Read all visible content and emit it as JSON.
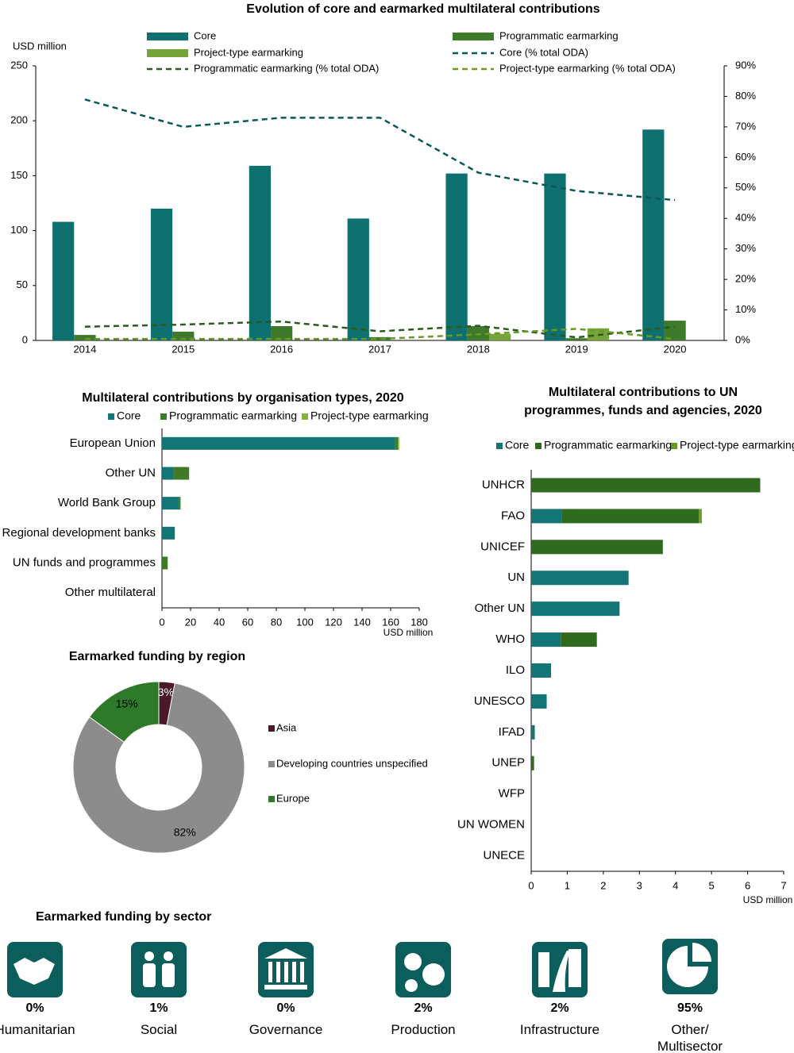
{
  "chart_data": [
    {
      "type": "combo",
      "title": "Evolution of core and earmarked multilateral contributions",
      "ylabel": "USD million",
      "categories": [
        "2014",
        "2015",
        "2016",
        "2017",
        "2018",
        "2019",
        "2020"
      ],
      "series": [
        {
          "name": "Core",
          "type": "bar",
          "color": "#0f7070",
          "values": [
            108,
            120,
            159,
            111,
            152,
            152,
            192
          ]
        },
        {
          "name": "Programmatic earmarking",
          "type": "bar",
          "color": "#3f7a2a",
          "values": [
            5,
            8,
            13,
            3,
            13,
            2,
            18
          ]
        },
        {
          "name": "Project-type earmarking",
          "type": "bar",
          "color": "#77a43a",
          "values": [
            0,
            0,
            0,
            0,
            6,
            11,
            0
          ]
        },
        {
          "name": "Core (% total ODA)",
          "type": "line",
          "axis": "y2",
          "color": "#0b5757",
          "values": [
            79,
            70,
            73,
            73,
            55,
            49,
            46
          ]
        },
        {
          "name": "Programmatic earmarking (% total ODA)",
          "type": "line",
          "axis": "y2",
          "color": "#2b5a1d",
          "values": [
            4.5,
            5.2,
            6.2,
            3,
            4.8,
            1,
            4.5
          ]
        },
        {
          "name": "Project-type earmarking (% total ODA)",
          "type": "line",
          "axis": "y2",
          "color": "#6a9a24",
          "values": [
            0.5,
            0.5,
            0.5,
            0.5,
            2,
            3.8,
            0.5
          ]
        }
      ],
      "ylim": [
        0,
        250
      ],
      "yticks": [
        0,
        50,
        100,
        150,
        200,
        250
      ],
      "y2lim": [
        0,
        90
      ],
      "y2ticks": [
        {
          "value": 0,
          "label": "0%"
        },
        {
          "value": 10,
          "label": "10%"
        },
        {
          "value": 20,
          "label": "20%"
        },
        {
          "value": 30,
          "label": "30%"
        },
        {
          "value": 40,
          "label": "40%"
        },
        {
          "value": 50,
          "label": "50%"
        },
        {
          "value": 60,
          "label": "60%"
        },
        {
          "value": 70,
          "label": "70%"
        },
        {
          "value": 80,
          "label": "80%"
        },
        {
          "value": 90,
          "label": "90%"
        }
      ],
      "grid": false
    },
    {
      "type": "hbar_stacked",
      "title": "Multilateral contributions by organisation types, 2020",
      "xlabel": "USD million",
      "categories": [
        "European Union",
        "Other UN",
        "World Bank Group",
        "Regional development banks",
        "UN funds and programmes",
        "Other multilateral"
      ],
      "series": [
        {
          "name": "Core",
          "color": "#137575",
          "values": [
            163,
            8,
            12,
            9,
            0,
            0
          ]
        },
        {
          "name": "Programmatic earmarking",
          "color": "#3f7a2a",
          "values": [
            2,
            11,
            1,
            0,
            4,
            0
          ]
        },
        {
          "name": "Project-type earmarking",
          "color": "#86b13a",
          "values": [
            1,
            0,
            0,
            0,
            0,
            0
          ]
        }
      ],
      "xlim": [
        0,
        180
      ],
      "xticks": [
        0,
        20,
        40,
        60,
        80,
        100,
        120,
        140,
        160,
        180
      ],
      "grid": false
    },
    {
      "type": "donut",
      "title": "Earmarked funding by region",
      "categories": [
        "Asia",
        "Developing countries unspecified",
        "Europe"
      ],
      "values": [
        3,
        82,
        15
      ],
      "value_labels": [
        "3%",
        "82%",
        "15%"
      ],
      "colors": [
        "#4a1a2a",
        "#8c8c8c",
        "#2f7a2a"
      ]
    },
    {
      "type": "hbar_stacked",
      "title": "Multilateral contributions to UN programmes, funds and agencies, 2020",
      "xlabel": "USD million",
      "categories": [
        "UNHCR",
        "FAO",
        "UNICEF",
        "UN",
        "Other UN",
        "WHO",
        "ILO",
        "UNESCO",
        "IFAD",
        "UNEP",
        "WFP",
        "UN WOMEN",
        "UNECE"
      ],
      "series": [
        {
          "name": "Core",
          "color": "#137575",
          "values": [
            0,
            0.85,
            0,
            2.7,
            2.45,
            0.82,
            0.55,
            0.43,
            0.1,
            0,
            0,
            0,
            0
          ]
        },
        {
          "name": "Programmatic earmarking",
          "color": "#2f6a1f",
          "values": [
            6.35,
            3.8,
            3.65,
            0,
            0,
            1.0,
            0,
            0,
            0,
            0.08,
            0,
            0,
            0
          ]
        },
        {
          "name": "Project-type earmarking",
          "color": "#6a9a24",
          "values": [
            0,
            0.08,
            0,
            0,
            0,
            0,
            0,
            0,
            0,
            0,
            0,
            0,
            0
          ]
        }
      ],
      "xlim": [
        0,
        7
      ],
      "xticks": [
        0,
        1,
        2,
        3,
        4,
        5,
        6,
        7
      ],
      "grid": false
    }
  ],
  "sectors": {
    "title": "Earmarked funding by sector",
    "items": [
      {
        "share": "0%",
        "name": "Humanitarian"
      },
      {
        "share": "1%",
        "name": "Social"
      },
      {
        "share": "0%",
        "name": "Governance"
      },
      {
        "share": "2%",
        "name": "Production"
      },
      {
        "share": "2%",
        "name": "Infrastructure"
      },
      {
        "share": "95%",
        "name": "Other/\nMultisector"
      }
    ]
  }
}
